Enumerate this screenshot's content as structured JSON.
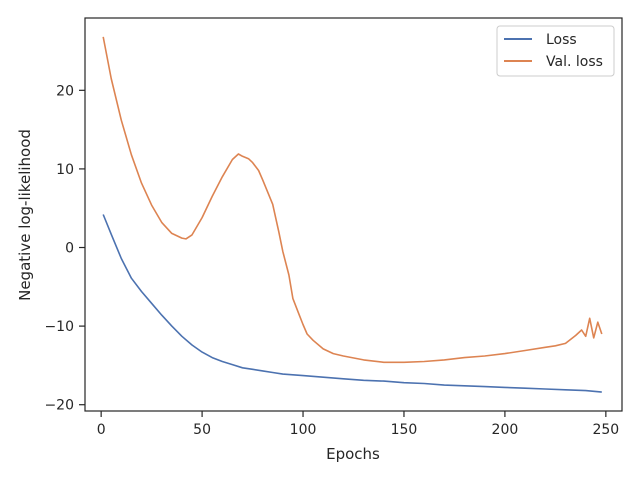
{
  "chart_data": {
    "type": "line",
    "xlabel": "Epochs",
    "ylabel": "Negative log-likelihood",
    "xlim": [
      -8,
      258
    ],
    "ylim": [
      -20.8,
      29.2
    ],
    "xticks": [
      0,
      50,
      100,
      150,
      200,
      250
    ],
    "yticks": [
      -20,
      -10,
      0,
      10,
      20
    ],
    "grid": false,
    "legend_position": "top-right",
    "series": [
      {
        "name": "Loss",
        "color": "#4c72b0",
        "x": [
          1,
          5,
          10,
          15,
          20,
          25,
          30,
          35,
          40,
          45,
          50,
          55,
          60,
          65,
          70,
          75,
          80,
          85,
          90,
          95,
          100,
          110,
          120,
          130,
          140,
          150,
          160,
          170,
          180,
          190,
          200,
          210,
          220,
          230,
          240,
          248
        ],
        "y": [
          4.2,
          1.7,
          -1.4,
          -3.9,
          -5.6,
          -7.1,
          -8.6,
          -10.0,
          -11.3,
          -12.4,
          -13.3,
          -14.0,
          -14.5,
          -14.9,
          -15.3,
          -15.5,
          -15.7,
          -15.9,
          -16.1,
          -16.2,
          -16.3,
          -16.5,
          -16.7,
          -16.9,
          -17.0,
          -17.2,
          -17.3,
          -17.5,
          -17.6,
          -17.7,
          -17.8,
          -17.9,
          -18.0,
          -18.1,
          -18.2,
          -18.4
        ]
      },
      {
        "name": "Val. loss",
        "color": "#dd8452",
        "x": [
          1,
          5,
          10,
          15,
          20,
          25,
          30,
          35,
          40,
          42,
          45,
          50,
          55,
          60,
          65,
          68,
          70,
          73,
          75,
          78,
          80,
          85,
          88,
          90,
          93,
          95,
          98,
          100,
          102,
          105,
          110,
          115,
          120,
          130,
          140,
          150,
          160,
          170,
          180,
          190,
          200,
          210,
          220,
          225,
          230,
          235,
          238,
          240,
          242,
          244,
          246,
          248
        ],
        "y": [
          26.8,
          21.5,
          16.2,
          11.8,
          8.2,
          5.4,
          3.2,
          1.8,
          1.2,
          1.1,
          1.6,
          3.8,
          6.5,
          9.0,
          11.2,
          11.9,
          11.6,
          11.3,
          10.8,
          9.8,
          8.6,
          5.5,
          2.0,
          -0.5,
          -3.5,
          -6.5,
          -8.5,
          -9.8,
          -11.0,
          -11.8,
          -12.9,
          -13.5,
          -13.8,
          -14.3,
          -14.6,
          -14.6,
          -14.5,
          -14.3,
          -14.0,
          -13.8,
          -13.5,
          -13.1,
          -12.7,
          -12.5,
          -12.2,
          -11.2,
          -10.5,
          -11.3,
          -9.0,
          -11.5,
          -9.5,
          -11.0
        ]
      }
    ]
  }
}
